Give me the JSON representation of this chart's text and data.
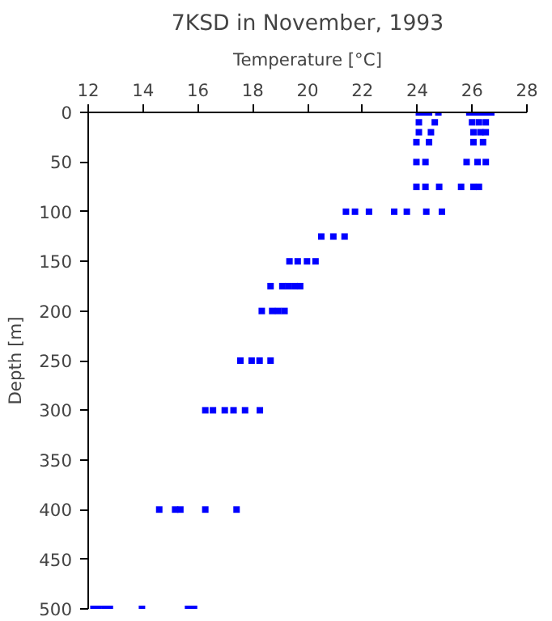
{
  "chart_data": {
    "type": "scatter",
    "title": "7KSD in November, 1993",
    "xlabel": "Temperature [°C]",
    "ylabel": "Depth [m]",
    "xlim": [
      12,
      28
    ],
    "xticks": [
      12,
      14,
      16,
      18,
      20,
      22,
      24,
      26,
      28
    ],
    "ylim": [
      500,
      0
    ],
    "yticks": [
      0,
      50,
      100,
      150,
      200,
      250,
      300,
      350,
      400,
      450,
      500
    ],
    "grid": false,
    "marker": "square",
    "series": [
      {
        "color": "#0000ff",
        "x": [
          24.06,
          24.25,
          24.43,
          24.77,
          25.9,
          26.1,
          26.3,
          26.5,
          26.7,
          24.06,
          24.64,
          26.0,
          26.25,
          26.5,
          24.06,
          24.5,
          26.05,
          26.3,
          26.5,
          23.97,
          24.43,
          26.05,
          26.4,
          23.97,
          24.3,
          25.8,
          26.2,
          26.5,
          23.97,
          24.3,
          24.8,
          25.6,
          26.05,
          26.25,
          21.4,
          21.73,
          22.24,
          23.16,
          23.62,
          24.33,
          24.9,
          20.5,
          20.94,
          21.35,
          19.34,
          19.64,
          19.98,
          20.29,
          18.65,
          19.08,
          19.3,
          19.53,
          19.73,
          18.33,
          18.71,
          18.93,
          19.16,
          17.55,
          17.96,
          18.25,
          18.65,
          16.27,
          16.55,
          16.98,
          17.3,
          17.72,
          18.26,
          14.59,
          15.17,
          15.36,
          16.27,
          17.41,
          12.19,
          12.38,
          12.6,
          12.79,
          13.96,
          15.64,
          15.86
        ],
        "values": [
          0,
          0,
          0,
          0,
          0,
          0,
          0,
          0,
          0,
          10,
          10,
          10,
          10,
          10,
          20,
          20,
          20,
          20,
          20,
          30,
          30,
          30,
          30,
          50,
          50,
          50,
          50,
          50,
          75,
          75,
          75,
          75,
          75,
          75,
          100,
          100,
          100,
          100,
          100,
          100,
          100,
          125,
          125,
          125,
          150,
          150,
          150,
          150,
          175,
          175,
          175,
          175,
          175,
          200,
          200,
          200,
          200,
          250,
          250,
          250,
          250,
          300,
          300,
          300,
          300,
          300,
          300,
          400,
          400,
          400,
          400,
          400,
          500,
          500,
          500,
          500,
          500,
          500,
          500
        ]
      }
    ]
  }
}
